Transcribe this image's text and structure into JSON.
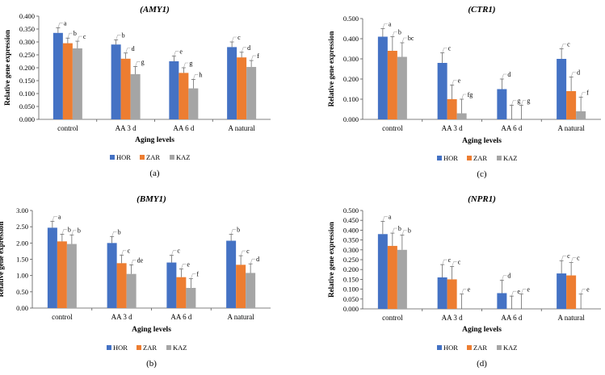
{
  "colors": {
    "HOR": "#4472C4",
    "ZAR": "#ED7D31",
    "KAZ": "#A5A5A5",
    "axis": "#595959",
    "grid": "#D9D9D9"
  },
  "chart_data": [
    {
      "id": "amy1",
      "panel_label": "(a)",
      "title": "(AMY1)",
      "type": "bar",
      "xlabel": "Aging levels",
      "ylabel": "Relative gene expression",
      "ylim": [
        0,
        0.4
      ],
      "yticks": [
        "0.000",
        "0.050",
        "0.100",
        "0.150",
        "0.200",
        "0.250",
        "0.300",
        "0.350",
        "0.400"
      ],
      "categories": [
        "control",
        "AA 3 d",
        "AA 6 d",
        "A natural"
      ],
      "series": [
        {
          "name": "HOR",
          "values": [
            0.335,
            0.29,
            0.225,
            0.28
          ],
          "errors": [
            0.02,
            0.018,
            0.02,
            0.02
          ],
          "letters": [
            "a",
            "b",
            "e",
            "c"
          ]
        },
        {
          "name": "ZAR",
          "values": [
            0.295,
            0.235,
            0.18,
            0.24
          ],
          "errors": [
            0.02,
            0.022,
            0.02,
            0.02
          ],
          "letters": [
            "b",
            "d",
            "g",
            "d"
          ]
        },
        {
          "name": "KAZ",
          "values": [
            0.275,
            0.175,
            0.12,
            0.203
          ],
          "errors": [
            0.028,
            0.03,
            0.035,
            0.025
          ],
          "letters": [
            "c",
            "g",
            "h",
            "f"
          ]
        }
      ]
    },
    {
      "id": "ctr1",
      "panel_label": "(c)",
      "title": "(CTR1)",
      "type": "bar",
      "xlabel": "Aging levels",
      "ylabel": "Relative gene expression",
      "ylim": [
        0,
        0.5
      ],
      "yticks": [
        "0.000",
        "0.100",
        "0.200",
        "0.300",
        "0.400",
        "0.500"
      ],
      "categories": [
        "control",
        "AA 3 d",
        "AA 6 d",
        "A natural"
      ],
      "series": [
        {
          "name": "HOR",
          "values": [
            0.41,
            0.28,
            0.15,
            0.3
          ],
          "errors": [
            0.04,
            0.05,
            0.05,
            0.05
          ],
          "letters": [
            "a",
            "c",
            "d",
            "c"
          ]
        },
        {
          "name": "ZAR",
          "values": [
            0.34,
            0.1,
            0.0,
            0.14
          ],
          "errors": [
            0.07,
            0.07,
            0.07,
            0.07
          ],
          "letters": [
            "b",
            "e",
            "g",
            "d"
          ]
        },
        {
          "name": "KAZ",
          "values": [
            0.31,
            0.03,
            0.0,
            0.04
          ],
          "errors": [
            0.07,
            0.07,
            0.07,
            0.07
          ],
          "letters": [
            "bc",
            "fg",
            "g",
            "f"
          ]
        }
      ]
    },
    {
      "id": "bmy1",
      "panel_label": "(b)",
      "title": "(BMY1)",
      "type": "bar",
      "xlabel": "Aging levels",
      "ylabel": "Relative gene expression",
      "ylim": [
        0,
        3.0
      ],
      "yticks": [
        "0.00",
        "0.50",
        "1.00",
        "1.50",
        "2.00",
        "2.50",
        "3.00"
      ],
      "categories": [
        "control",
        "AA 3 d",
        "AA 6 d",
        "A natural"
      ],
      "series": [
        {
          "name": "HOR",
          "values": [
            2.47,
            2.0,
            1.4,
            2.07
          ],
          "errors": [
            0.2,
            0.2,
            0.22,
            0.2
          ],
          "letters": [
            "a",
            "b",
            "c",
            "b"
          ]
        },
        {
          "name": "ZAR",
          "values": [
            2.05,
            1.38,
            0.95,
            1.33
          ],
          "errors": [
            0.22,
            0.25,
            0.25,
            0.28
          ],
          "letters": [
            "b",
            "c",
            "e",
            "c"
          ]
        },
        {
          "name": "KAZ",
          "values": [
            1.97,
            1.05,
            0.62,
            1.08
          ],
          "errors": [
            0.28,
            0.28,
            0.28,
            0.28
          ],
          "letters": [
            "b",
            "de",
            "f",
            "d"
          ]
        }
      ]
    },
    {
      "id": "npr1",
      "panel_label": "(d)",
      "title": "(NPR1)",
      "type": "bar",
      "xlabel": "Aging levels",
      "ylabel": "Relative gene expression",
      "ylim": [
        0,
        0.5
      ],
      "yticks": [
        "0.000",
        "0.050",
        "0.100",
        "0.150",
        "0.200",
        "0.250",
        "0.300",
        "0.350",
        "0.400",
        "0.450",
        "0.500"
      ],
      "categories": [
        "control",
        "AA 3 d",
        "AA 6 d",
        "A natural"
      ],
      "series": [
        {
          "name": "HOR",
          "values": [
            0.38,
            0.16,
            0.08,
            0.18
          ],
          "errors": [
            0.065,
            0.065,
            0.065,
            0.065
          ],
          "letters": [
            "a",
            "c",
            "d",
            "c"
          ]
        },
        {
          "name": "ZAR",
          "values": [
            0.32,
            0.15,
            0.0,
            0.17
          ],
          "errors": [
            0.065,
            0.065,
            0.065,
            0.065
          ],
          "letters": [
            "b",
            "c",
            "e",
            "c"
          ]
        },
        {
          "name": "KAZ",
          "values": [
            0.3,
            0.0,
            0.0,
            0.0
          ],
          "errors": [
            0.075,
            0.075,
            0.075,
            0.075
          ],
          "letters": [
            "b",
            "e",
            "e",
            "e"
          ]
        }
      ]
    }
  ]
}
